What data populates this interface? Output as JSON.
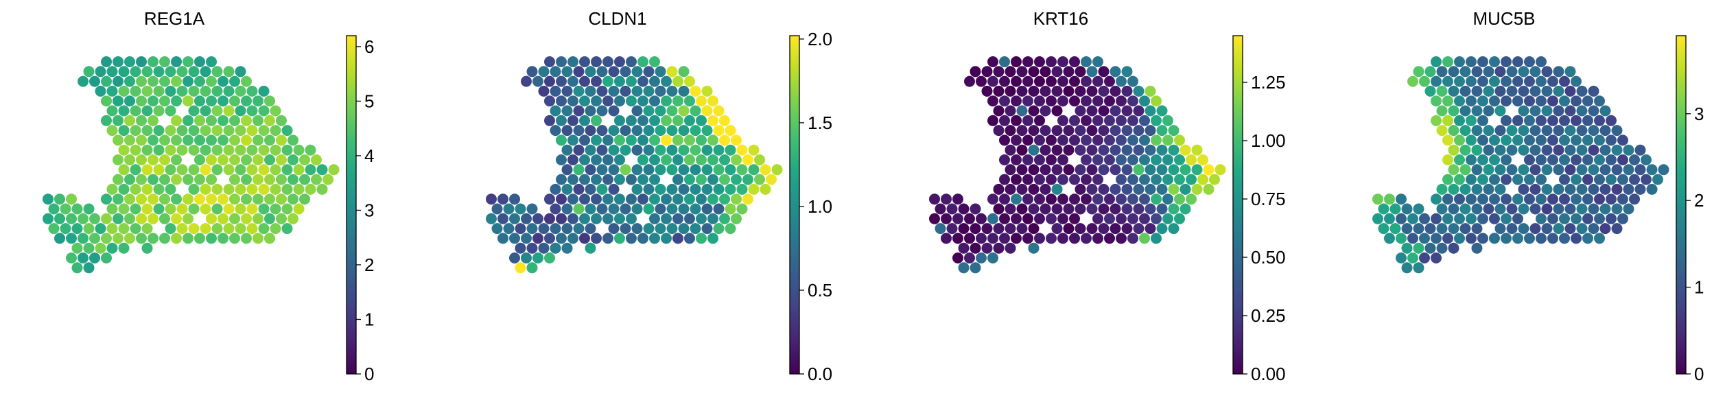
{
  "chart_data": [
    {
      "type": "scatter",
      "title": "REG1A",
      "colormap": "viridis",
      "colorbar": {
        "min": 0,
        "max": 6.2,
        "ticks": [
          0,
          1,
          2,
          3,
          4,
          5,
          6
        ],
        "tick_labels": [
          "0",
          "1",
          "2",
          "3",
          "4",
          "5",
          "6"
        ]
      },
      "spatial_pattern": "island",
      "hot_x": 0.55,
      "hot_y": 0.6,
      "hot_sigma": 0.45,
      "base_level": 0.45,
      "hot_level": 0.35,
      "edge_level": 0.05,
      "noise": 0.12,
      "seed": 11
    },
    {
      "type": "scatter",
      "title": "CLDN1",
      "colormap": "viridis",
      "colorbar": {
        "min": 0,
        "max": 2.02,
        "ticks": [
          0,
          0.5,
          1,
          1.5,
          2
        ],
        "tick_labels": [
          "0.0",
          "0.5",
          "1.0",
          "1.5",
          "2.0"
        ]
      },
      "spatial_pattern": "right_edge",
      "hot_x": 0.82,
      "hot_y": 0.35,
      "hot_sigma": 0.25,
      "base_level": 0.25,
      "hot_level": 0.45,
      "edge_level": 0.05,
      "noise": 0.15,
      "seed": 23
    },
    {
      "type": "scatter",
      "title": "KRT16",
      "colormap": "viridis",
      "colorbar": {
        "min": 0,
        "max": 1.45,
        "ticks": [
          0,
          0.25,
          0.5,
          0.75,
          1,
          1.25
        ],
        "tick_labels": [
          "0.00",
          "0.25",
          "0.50",
          "0.75",
          "1.00",
          "1.25"
        ]
      },
      "spatial_pattern": "right_edge",
      "hot_x": 0.9,
      "hot_y": 0.5,
      "hot_sigma": 0.18,
      "base_level": 0.04,
      "hot_level": 0.6,
      "edge_level": 0.0,
      "noise": 0.05,
      "seed": 37
    },
    {
      "type": "scatter",
      "title": "MUC5B",
      "colormap": "viridis",
      "colorbar": {
        "min": 0,
        "max": 3.9,
        "ticks": [
          0,
          1,
          2,
          3
        ],
        "tick_labels": [
          "0",
          "1",
          "2",
          "3"
        ]
      },
      "spatial_pattern": "left_edge",
      "hot_x": 0.1,
      "hot_y": 0.4,
      "hot_sigma": 0.2,
      "base_level": 0.25,
      "hot_level": 0.35,
      "edge_level": 0.05,
      "noise": 0.12,
      "seed": 51
    }
  ]
}
